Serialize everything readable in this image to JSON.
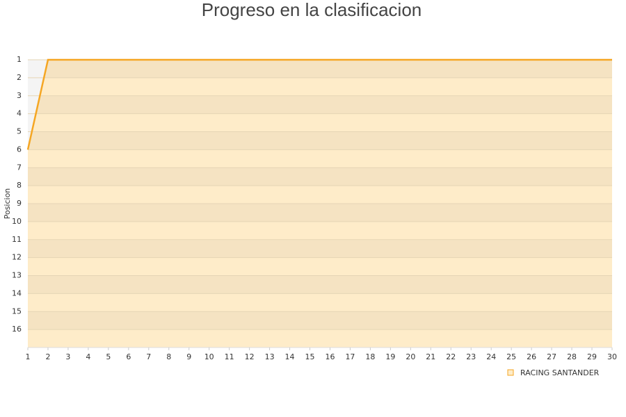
{
  "chart_data": {
    "type": "line",
    "title": "Progreso en la clasificacion",
    "y_label": "Posicion",
    "x": [
      1,
      2,
      3,
      4,
      5,
      6,
      7,
      8,
      9,
      10,
      11,
      12,
      13,
      14,
      15,
      16,
      17,
      18,
      19,
      20,
      21,
      22,
      23,
      24,
      25,
      26,
      27,
      28,
      29,
      30
    ],
    "xlim": [
      1,
      30
    ],
    "xticks": [
      1,
      2,
      3,
      4,
      5,
      6,
      7,
      8,
      9,
      10,
      11,
      12,
      13,
      14,
      15,
      16,
      17,
      18,
      19,
      20,
      21,
      22,
      23,
      24,
      25,
      26,
      27,
      28,
      29,
      30
    ],
    "ylim": [
      1,
      17
    ],
    "yticks": [
      1,
      2,
      3,
      4,
      5,
      6,
      7,
      8,
      9,
      10,
      11,
      12,
      13,
      14,
      15,
      16
    ],
    "y_inverted": true,
    "series": [
      {
        "name": "RACING SANTANDER",
        "color": "#f5a623",
        "values": [
          6,
          1,
          1,
          1,
          1,
          1,
          1,
          1,
          1,
          1,
          1,
          1,
          1,
          1,
          1,
          1,
          1,
          1,
          1,
          1,
          1,
          1,
          1,
          1,
          1,
          1,
          1,
          1,
          1,
          1
        ]
      }
    ]
  }
}
